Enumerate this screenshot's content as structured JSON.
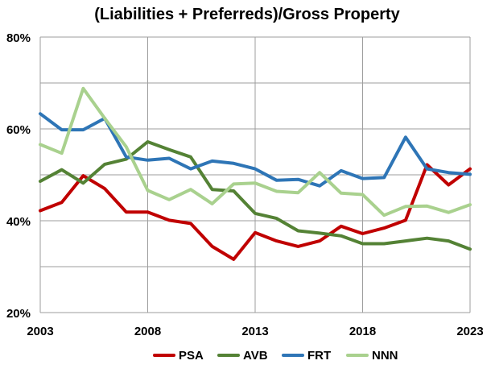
{
  "chart_data": {
    "type": "line",
    "title": "(Liabilities + Preferreds)/Gross Property",
    "xlabel": "",
    "ylabel": "",
    "xlim": [
      2003,
      2023
    ],
    "ylim": [
      20,
      80
    ],
    "x_ticks": [
      "2003",
      "2008",
      "2013",
      "2018",
      "2023"
    ],
    "x_tick_values": [
      2003,
      2008,
      2013,
      2018,
      2023
    ],
    "y_ticks": [
      "20%",
      "40%",
      "60%",
      "80%"
    ],
    "y_tick_values": [
      20,
      40,
      60,
      80
    ],
    "x_grid_values": [
      2003,
      2008,
      2013,
      2018,
      2023
    ],
    "y_grid_values": [
      20,
      30,
      40,
      50,
      60,
      70,
      80
    ],
    "grid": true,
    "legend_position": "bottom",
    "x": [
      2003,
      2004,
      2005,
      2006,
      2007,
      2008,
      2009,
      2010,
      2011,
      2012,
      2013,
      2014,
      2015,
      2016,
      2017,
      2018,
      2019,
      2020,
      2021,
      2022,
      2023
    ],
    "series": [
      {
        "name": "PSA",
        "color": "#c00000",
        "values": [
          42.2,
          44.0,
          49.8,
          47.0,
          41.9,
          41.9,
          40.1,
          39.4,
          34.4,
          31.6,
          37.4,
          35.6,
          34.4,
          35.6,
          38.8,
          37.2,
          38.4,
          40.1,
          52.2,
          47.8,
          51.3
        ]
      },
      {
        "name": "AVB",
        "color": "#548235",
        "values": [
          48.6,
          51.1,
          48.2,
          52.3,
          53.4,
          57.2,
          55.5,
          53.9,
          46.8,
          46.5,
          41.6,
          40.5,
          37.8,
          37.3,
          36.7,
          35.0,
          35.0,
          35.6,
          36.2,
          35.6,
          33.8
        ]
      },
      {
        "name": "FRT",
        "color": "#2e75b6",
        "values": [
          63.3,
          59.8,
          59.8,
          62.3,
          53.9,
          53.2,
          53.6,
          51.3,
          53.0,
          52.5,
          51.3,
          48.8,
          49.0,
          47.6,
          50.9,
          49.2,
          49.4,
          58.2,
          51.3,
          50.5,
          50.1
        ]
      },
      {
        "name": "NNN",
        "color": "#a9d18e",
        "values": [
          56.6,
          54.7,
          68.8,
          62.3,
          56.1,
          46.6,
          44.6,
          46.8,
          43.7,
          48.0,
          48.2,
          46.4,
          46.1,
          50.5,
          46.0,
          45.7,
          41.2,
          43.1,
          43.2,
          41.8,
          43.5
        ]
      }
    ]
  }
}
